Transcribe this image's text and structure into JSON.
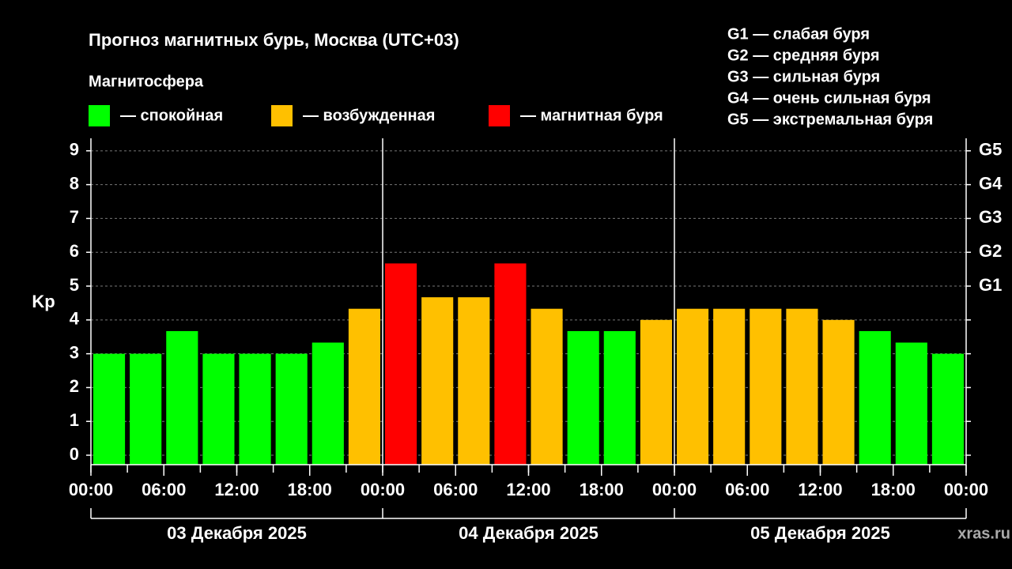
{
  "chart_data": {
    "type": "bar",
    "title": "Прогноз магнитных бурь, Москва (UTC+03)",
    "subtitle": "Магнитосфера",
    "legend": [
      {
        "name": "— спокойная",
        "color": "#00ff00"
      },
      {
        "name": "— возбужденная",
        "color": "#ffc000"
      },
      {
        "name": "— магнитная буря",
        "color": "#ff0000"
      }
    ],
    "storm_scale": [
      "G1 — слабая буря",
      "G2 — средняя буря",
      "G3 — сильная буря",
      "G4 — очень сильная буря",
      "G5 — экстремальная буря"
    ],
    "ylabel": "Kp",
    "values": [
      3,
      3,
      3.67,
      3,
      3,
      3,
      3.33,
      4.33,
      5.67,
      4.67,
      4.67,
      5.67,
      4.33,
      3.67,
      3.67,
      4,
      4.33,
      4.33,
      4.33,
      4.33,
      4,
      3.67,
      3.33,
      3
    ],
    "colors": [
      "#00ff00",
      "#00ff00",
      "#00ff00",
      "#00ff00",
      "#00ff00",
      "#00ff00",
      "#00ff00",
      "#ffc000",
      "#ff0000",
      "#ffc000",
      "#ffc000",
      "#ff0000",
      "#ffc000",
      "#00ff00",
      "#00ff00",
      "#ffc000",
      "#ffc000",
      "#ffc000",
      "#ffc000",
      "#ffc000",
      "#ffc000",
      "#00ff00",
      "#00ff00",
      "#00ff00"
    ],
    "xticks": [
      "00:00",
      "06:00",
      "12:00",
      "18:00",
      "00:00",
      "06:00",
      "12:00",
      "18:00",
      "00:00",
      "06:00",
      "12:00",
      "18:00",
      "00:00"
    ],
    "days": [
      "03 Декабря 2025",
      "04 Декабря 2025",
      "05 Декабря 2025"
    ],
    "ylim": [
      -0.28,
      9.37
    ],
    "yticks": [
      0,
      1,
      2,
      3,
      4,
      5,
      6,
      7,
      8,
      9
    ],
    "y2lim": [
      -0.28,
      9.37
    ],
    "y2ticks": [
      {
        "value": 5,
        "label": "G1"
      },
      {
        "value": 6,
        "label": "G2"
      },
      {
        "value": 7,
        "label": "G3"
      },
      {
        "value": 8,
        "label": "G4"
      },
      {
        "value": 9,
        "label": "G5"
      }
    ],
    "grid": true,
    "watermark": "xras.ru"
  }
}
